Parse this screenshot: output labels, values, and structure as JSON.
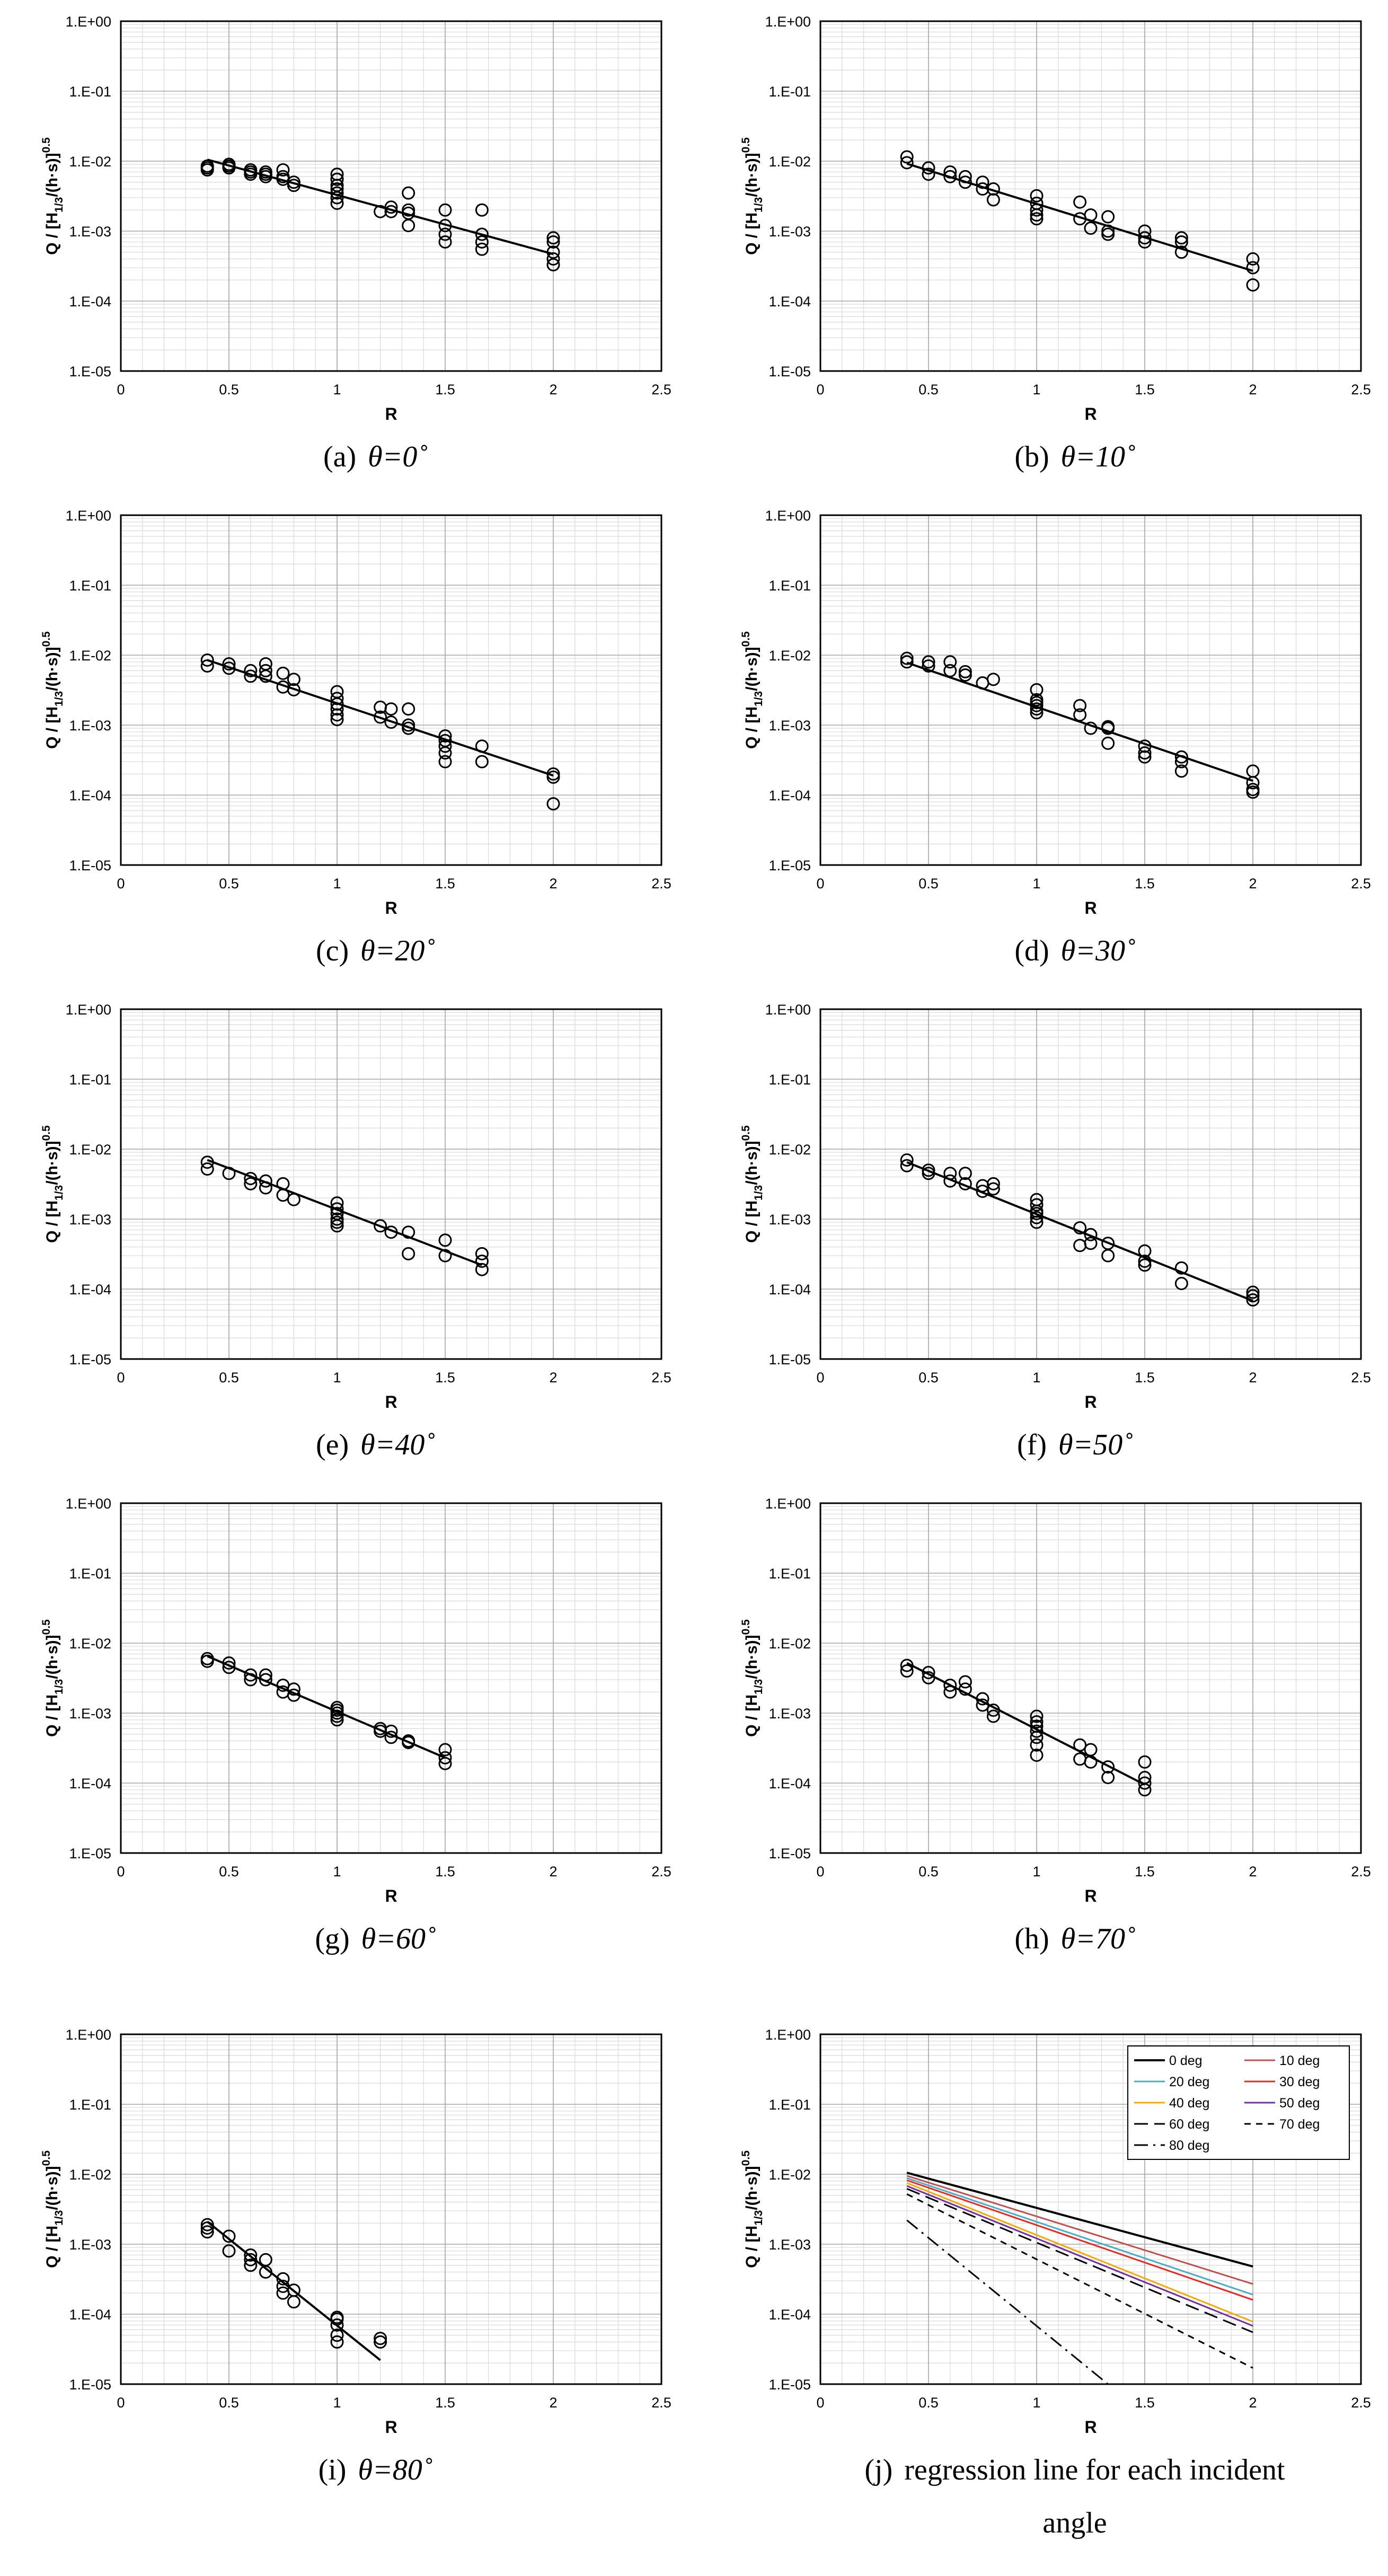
{
  "figure": {
    "y_tick_labels": [
      "1.E-05",
      "1.E-04",
      "1.E-03",
      "1.E-02",
      "1.E-01",
      "1.E+00"
    ],
    "x_tick_labels": [
      "0",
      "0.5",
      "1",
      "1.5",
      "2",
      "2.5"
    ]
  },
  "chart_data": [
    {
      "type": "scatter",
      "panel": "a",
      "caption_prefix": "(a)",
      "caption_angle": "θ=0˚",
      "xlabel": "R",
      "ylabel": "Q / [H1/3/(h·s)]0.5",
      "ylabel_main": "Q / [H",
      "ylabel_sub": "1/3",
      "ylabel_tail": "/(h·s)]",
      "ylabel_sup": "0.5",
      "xlim": [
        0,
        2.5
      ],
      "ylim": [
        1e-05,
        1
      ],
      "yscale": "log",
      "grid": true,
      "x": [
        0.4,
        0.4,
        0.4,
        0.5,
        0.5,
        0.5,
        0.6,
        0.6,
        0.6,
        0.67,
        0.67,
        0.67,
        0.75,
        0.75,
        0.75,
        0.8,
        0.8,
        1.0,
        1.0,
        1.0,
        1.0,
        1.0,
        1.0,
        1.0,
        1.0,
        1.2,
        1.25,
        1.25,
        1.33,
        1.33,
        1.33,
        1.33,
        1.5,
        1.5,
        1.5,
        1.5,
        1.67,
        1.67,
        1.67,
        1.67,
        2.0,
        2.0,
        2.0,
        2.0,
        2.0
      ],
      "y": [
        0.008,
        0.0085,
        0.0075,
        0.009,
        0.0085,
        0.008,
        0.0075,
        0.0065,
        0.007,
        0.0065,
        0.006,
        0.007,
        0.006,
        0.0055,
        0.0075,
        0.0045,
        0.005,
        0.0065,
        0.0055,
        0.0045,
        0.004,
        0.0035,
        0.003,
        0.0025,
        0.0055,
        0.0019,
        0.0022,
        0.0019,
        0.0035,
        0.002,
        0.0018,
        0.0012,
        0.002,
        0.0012,
        0.0009,
        0.0007,
        0.002,
        0.0009,
        0.0007,
        0.00055,
        0.0008,
        0.0007,
        0.0005,
        0.0004,
        0.00033
      ],
      "regression": [
        [
          0.4,
          0.0105
        ],
        [
          2.0,
          0.00047
        ]
      ]
    },
    {
      "type": "scatter",
      "panel": "b",
      "caption_prefix": "(b)",
      "caption_angle": "θ=10˚",
      "xlabel": "R",
      "ylabel": "Q / [H1/3/(h·s)]0.5",
      "ylabel_main": "Q / [H",
      "ylabel_sub": "1/3",
      "ylabel_tail": "/(h·s)]",
      "ylabel_sup": "0.5",
      "xlim": [
        0,
        2.5
      ],
      "ylim": [
        1e-05,
        1
      ],
      "yscale": "log",
      "grid": true,
      "x": [
        0.4,
        0.4,
        0.5,
        0.5,
        0.6,
        0.6,
        0.67,
        0.67,
        0.75,
        0.75,
        0.8,
        0.8,
        1.0,
        1.0,
        1.0,
        1.0,
        1.0,
        1.2,
        1.2,
        1.25,
        1.25,
        1.33,
        1.33,
        1.33,
        1.5,
        1.5,
        1.5,
        1.67,
        1.67,
        1.67,
        2.0,
        2.0,
        2.0
      ],
      "y": [
        0.0115,
        0.0095,
        0.008,
        0.0065,
        0.007,
        0.006,
        0.006,
        0.005,
        0.005,
        0.004,
        0.004,
        0.0028,
        0.0032,
        0.0025,
        0.002,
        0.0017,
        0.0015,
        0.0026,
        0.0015,
        0.0017,
        0.0011,
        0.0016,
        0.001,
        0.0009,
        0.001,
        0.0008,
        0.0007,
        0.0008,
        0.0007,
        0.0005,
        0.0004,
        0.0003,
        0.00017
      ],
      "regression": [
        [
          0.4,
          0.0092
        ],
        [
          2.0,
          0.00027
        ]
      ]
    },
    {
      "type": "scatter",
      "panel": "c",
      "caption_prefix": "(c)",
      "caption_angle": "θ=20˚",
      "xlabel": "R",
      "ylabel": "Q / [H1/3/(h·s)]0.5",
      "ylabel_main": "Q / [H",
      "ylabel_sub": "1/3",
      "ylabel_tail": "/(h·s)]",
      "ylabel_sup": "0.5",
      "xlim": [
        0,
        2.5
      ],
      "ylim": [
        1e-05,
        1
      ],
      "yscale": "log",
      "grid": true,
      "x": [
        0.4,
        0.4,
        0.5,
        0.5,
        0.6,
        0.6,
        0.67,
        0.67,
        0.67,
        0.75,
        0.75,
        0.8,
        0.8,
        1.0,
        1.0,
        1.0,
        1.0,
        1.0,
        1.0,
        1.2,
        1.2,
        1.25,
        1.25,
        1.33,
        1.33,
        1.33,
        1.5,
        1.5,
        1.5,
        1.5,
        1.5,
        1.67,
        1.67,
        2.0,
        2.0,
        2.0
      ],
      "y": [
        0.0085,
        0.007,
        0.0075,
        0.0065,
        0.006,
        0.005,
        0.0075,
        0.006,
        0.005,
        0.0055,
        0.0035,
        0.0045,
        0.0032,
        0.003,
        0.0024,
        0.002,
        0.0017,
        0.0014,
        0.0012,
        0.0018,
        0.0013,
        0.0017,
        0.0011,
        0.0017,
        0.001,
        0.0009,
        0.0007,
        0.0006,
        0.0005,
        0.0004,
        0.0003,
        0.0005,
        0.0003,
        0.0002,
        0.00018,
        7.5e-05
      ],
      "regression": [
        [
          0.4,
          0.0085
        ],
        [
          2.0,
          0.00019
        ]
      ]
    },
    {
      "type": "scatter",
      "panel": "d",
      "caption_prefix": "(d)",
      "caption_angle": "θ=30˚",
      "xlabel": "R",
      "ylabel": "Q / [H1/3/(h·s)]0.5",
      "ylabel_main": "Q / [H",
      "ylabel_sub": "1/3",
      "ylabel_tail": "/(h·s)]",
      "ylabel_sup": "0.5",
      "xlim": [
        0,
        2.5
      ],
      "ylim": [
        1e-05,
        1
      ],
      "yscale": "log",
      "grid": true,
      "x": [
        0.4,
        0.4,
        0.5,
        0.5,
        0.6,
        0.6,
        0.67,
        0.67,
        0.75,
        0.8,
        1.0,
        1.0,
        1.0,
        1.0,
        1.0,
        1.0,
        1.2,
        1.2,
        1.25,
        1.33,
        1.33,
        1.33,
        1.5,
        1.5,
        1.5,
        1.67,
        1.67,
        1.67,
        2.0,
        2.0,
        2.0,
        2.0
      ],
      "y": [
        0.009,
        0.008,
        0.008,
        0.007,
        0.008,
        0.006,
        0.0058,
        0.0052,
        0.004,
        0.0045,
        0.0032,
        0.0023,
        0.0021,
        0.0019,
        0.0017,
        0.0015,
        0.0019,
        0.0014,
        0.0009,
        0.00095,
        0.0009,
        0.00055,
        0.0005,
        0.0004,
        0.00035,
        0.00035,
        0.0003,
        0.00022,
        0.00022,
        0.00015,
        0.00012,
        0.00011
      ],
      "regression": [
        [
          0.4,
          0.0078
        ],
        [
          2.0,
          0.00016
        ]
      ]
    },
    {
      "type": "scatter",
      "panel": "e",
      "caption_prefix": "(e)",
      "caption_angle": "θ=40˚",
      "xlabel": "R",
      "ylabel": "Q / [H1/3/(h·s)]0.5",
      "ylabel_main": "Q / [H",
      "ylabel_sub": "1/3",
      "ylabel_tail": "/(h·s)]",
      "ylabel_sup": "0.5",
      "xlim": [
        0,
        2.5
      ],
      "ylim": [
        1e-05,
        1
      ],
      "yscale": "log",
      "grid": true,
      "x": [
        0.4,
        0.4,
        0.5,
        0.6,
        0.6,
        0.67,
        0.67,
        0.75,
        0.75,
        0.8,
        1.0,
        1.0,
        1.0,
        1.0,
        1.0,
        1.0,
        1.2,
        1.25,
        1.33,
        1.33,
        1.5,
        1.5,
        1.67,
        1.67,
        1.67
      ],
      "y": [
        0.0065,
        0.0052,
        0.0045,
        0.0038,
        0.0032,
        0.0035,
        0.0028,
        0.0032,
        0.0022,
        0.0019,
        0.0017,
        0.0014,
        0.0012,
        0.001,
        0.0009,
        0.0008,
        0.0008,
        0.00065,
        0.00065,
        0.00032,
        0.0005,
        0.0003,
        0.00032,
        0.00025,
        0.00019
      ],
      "regression": [
        [
          0.4,
          0.007
        ],
        [
          1.67,
          0.00022
        ]
      ]
    },
    {
      "type": "scatter",
      "panel": "f",
      "caption_prefix": "(f)",
      "caption_angle": "θ=50˚",
      "xlabel": "R",
      "ylabel": "Q / [H1/3/(h·s)]0.5",
      "ylabel_main": "Q / [H",
      "ylabel_sub": "1/3",
      "ylabel_tail": "/(h·s)]",
      "ylabel_sup": "0.5",
      "xlim": [
        0,
        2.5
      ],
      "ylim": [
        1e-05,
        1
      ],
      "yscale": "log",
      "grid": true,
      "x": [
        0.4,
        0.4,
        0.5,
        0.5,
        0.6,
        0.6,
        0.67,
        0.67,
        0.75,
        0.75,
        0.8,
        0.8,
        1.0,
        1.0,
        1.0,
        1.0,
        1.0,
        1.0,
        1.2,
        1.2,
        1.25,
        1.25,
        1.33,
        1.33,
        1.5,
        1.5,
        1.5,
        1.67,
        1.67,
        2.0,
        2.0,
        2.0
      ],
      "y": [
        0.007,
        0.0058,
        0.005,
        0.0045,
        0.0045,
        0.0035,
        0.0045,
        0.0032,
        0.003,
        0.0025,
        0.0032,
        0.0027,
        0.0019,
        0.0016,
        0.0013,
        0.0012,
        0.00105,
        0.0009,
        0.00075,
        0.00042,
        0.0006,
        0.00045,
        0.00045,
        0.0003,
        0.00035,
        0.00025,
        0.00022,
        0.0002,
        0.00012,
        9e-05,
        8e-05,
        7e-05
      ],
      "regression": [
        [
          0.4,
          0.0065
        ],
        [
          2.0,
          6.8e-05
        ]
      ]
    },
    {
      "type": "scatter",
      "panel": "g",
      "caption_prefix": "(g)",
      "caption_angle": "θ=60˚",
      "xlabel": "R",
      "ylabel": "Q / [H1/3/(h·s)]0.5",
      "ylabel_main": "Q / [H",
      "ylabel_sub": "1/3",
      "ylabel_tail": "/(h·s)]",
      "ylabel_sup": "0.5",
      "xlim": [
        0,
        2.5
      ],
      "ylim": [
        1e-05,
        1
      ],
      "yscale": "log",
      "grid": true,
      "x": [
        0.4,
        0.4,
        0.5,
        0.5,
        0.6,
        0.6,
        0.67,
        0.67,
        0.75,
        0.75,
        0.8,
        0.8,
        1.0,
        1.0,
        1.0,
        1.0,
        1.0,
        1.2,
        1.2,
        1.25,
        1.25,
        1.33,
        1.33,
        1.5,
        1.5,
        1.5
      ],
      "y": [
        0.006,
        0.0055,
        0.0052,
        0.0045,
        0.0035,
        0.003,
        0.0035,
        0.003,
        0.0025,
        0.002,
        0.0022,
        0.0018,
        0.0012,
        0.0011,
        0.001,
        0.0009,
        0.0008,
        0.0006,
        0.00055,
        0.00055,
        0.00045,
        0.0004,
        0.00038,
        0.0003,
        0.00023,
        0.00019
      ],
      "regression": [
        [
          0.4,
          0.0065
        ],
        [
          1.5,
          0.00023
        ]
      ]
    },
    {
      "type": "scatter",
      "panel": "h",
      "caption_prefix": "(h)",
      "caption_angle": "θ=70˚",
      "xlabel": "R",
      "ylabel": "Q / [H1/3/(h·s)]0.5",
      "ylabel_main": "Q / [H",
      "ylabel_sub": "1/3",
      "ylabel_tail": "/(h·s)]",
      "ylabel_sup": "0.5",
      "xlim": [
        0,
        2.5
      ],
      "ylim": [
        1e-05,
        1
      ],
      "yscale": "log",
      "grid": true,
      "x": [
        0.4,
        0.4,
        0.5,
        0.5,
        0.6,
        0.6,
        0.67,
        0.67,
        0.75,
        0.75,
        0.8,
        0.8,
        1.0,
        1.0,
        1.0,
        1.0,
        1.0,
        1.0,
        1.0,
        1.2,
        1.2,
        1.25,
        1.25,
        1.33,
        1.33,
        1.5,
        1.5,
        1.5,
        1.5
      ],
      "y": [
        0.0048,
        0.004,
        0.0038,
        0.0032,
        0.0025,
        0.002,
        0.0028,
        0.0022,
        0.0016,
        0.0013,
        0.0011,
        0.0009,
        0.0009,
        0.00075,
        0.00065,
        0.00055,
        0.00045,
        0.00035,
        0.00025,
        0.00035,
        0.00022,
        0.0003,
        0.0002,
        0.00017,
        0.00012,
        0.0002,
        0.00012,
        0.0001,
        8e-05
      ],
      "regression": [
        [
          0.4,
          0.0052
        ],
        [
          1.5,
          9.5e-05
        ]
      ]
    },
    {
      "type": "scatter",
      "panel": "i",
      "caption_prefix": "(i)",
      "caption_angle": "θ=80˚",
      "xlabel": "R",
      "ylabel": "Q / [H1/3/(h·s)]0.5",
      "ylabel_main": "Q / [H",
      "ylabel_sub": "1/3",
      "ylabel_tail": "/(h·s)]",
      "ylabel_sup": "0.5",
      "xlim": [
        0,
        2.5
      ],
      "ylim": [
        1e-05,
        1
      ],
      "yscale": "log",
      "grid": true,
      "x": [
        0.4,
        0.4,
        0.4,
        0.5,
        0.5,
        0.6,
        0.6,
        0.6,
        0.67,
        0.67,
        0.75,
        0.75,
        0.75,
        0.8,
        0.8,
        1.0,
        1.0,
        1.0,
        1.0,
        1.0,
        1.2,
        1.2
      ],
      "y": [
        0.0019,
        0.0017,
        0.0015,
        0.0013,
        0.0008,
        0.0007,
        0.0006,
        0.0005,
        0.0006,
        0.0004,
        0.00032,
        0.00025,
        0.0002,
        0.00022,
        0.00015,
        9e-05,
        8.5e-05,
        7e-05,
        5e-05,
        4e-05,
        4.5e-05,
        4e-05
      ],
      "regression": [
        [
          0.4,
          0.0021
        ],
        [
          1.2,
          2.2e-05
        ]
      ]
    },
    {
      "type": "line",
      "panel": "j",
      "caption_prefix": "(j)",
      "caption_angle": "",
      "caption_text": "regression line for each incident",
      "caption_text2": "angle",
      "xlabel": "R",
      "ylabel": "Q / [H1/3/(h·s)]0.5",
      "ylabel_main": "Q / [H",
      "ylabel_sub": "1/3",
      "ylabel_tail": "/(h·s)]",
      "ylabel_sup": "0.5",
      "xlim": [
        0,
        2.5
      ],
      "ylim": [
        1e-05,
        1
      ],
      "yscale": "log",
      "grid": true,
      "legend": "top-right",
      "series": [
        {
          "name": "0 deg",
          "color": "#000000",
          "dash": "solid",
          "width": 4,
          "x": [
            0.4,
            2.0
          ],
          "y": [
            0.0105,
            0.00048
          ]
        },
        {
          "name": "10 deg",
          "color": "#c0504d",
          "dash": "solid",
          "width": 3,
          "x": [
            0.4,
            2.0
          ],
          "y": [
            0.0095,
            0.00027
          ]
        },
        {
          "name": "20 deg",
          "color": "#4bacc6",
          "dash": "solid",
          "width": 3,
          "x": [
            0.4,
            2.0
          ],
          "y": [
            0.0088,
            0.00019
          ]
        },
        {
          "name": "30 deg",
          "color": "#e8281e",
          "dash": "solid",
          "width": 3,
          "x": [
            0.4,
            2.0
          ],
          "y": [
            0.0082,
            0.00016
          ]
        },
        {
          "name": "40 deg",
          "color": "#f5a800",
          "dash": "solid",
          "width": 3,
          "x": [
            0.4,
            2.0
          ],
          "y": [
            0.0075,
            7.8e-05
          ]
        },
        {
          "name": "50 deg",
          "color": "#7030a0",
          "dash": "solid",
          "width": 3,
          "x": [
            0.4,
            2.0
          ],
          "y": [
            0.0068,
            6.8e-05
          ]
        },
        {
          "name": "60 deg",
          "color": "#000000",
          "dash": "long",
          "width": 3,
          "x": [
            0.4,
            2.0
          ],
          "y": [
            0.0062,
            5.5e-05
          ]
        },
        {
          "name": "70 deg",
          "color": "#000000",
          "dash": "short",
          "width": 3,
          "x": [
            0.4,
            2.0
          ],
          "y": [
            0.0052,
            1.7e-05
          ]
        },
        {
          "name": "80 deg",
          "color": "#000000",
          "dash": "dashdot",
          "width": 3,
          "x": [
            0.4,
            1.33
          ],
          "y": [
            0.0022,
            1e-05
          ]
        }
      ]
    }
  ]
}
